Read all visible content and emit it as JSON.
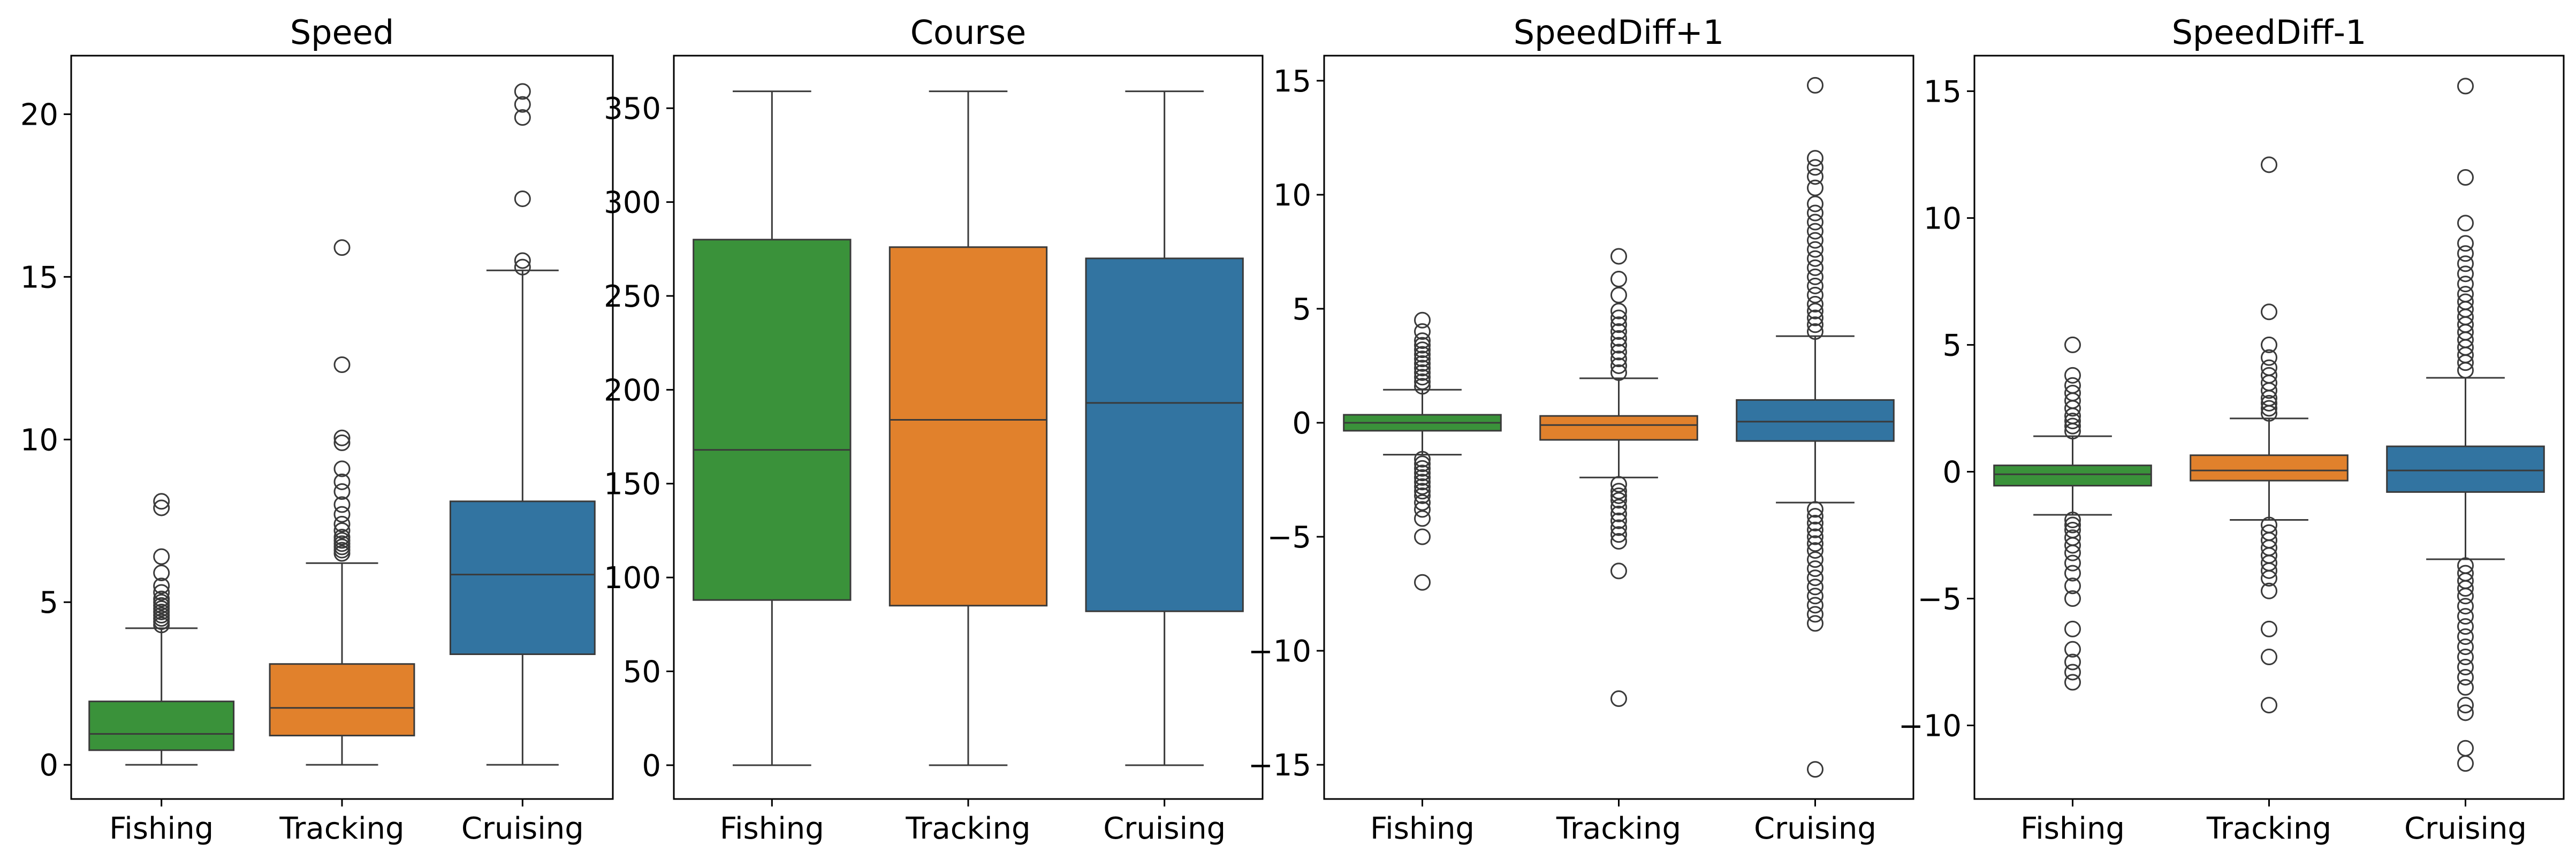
{
  "colors": {
    "Fishing": "#3a923a",
    "Tracking": "#e1812c",
    "Cruising": "#3274a1"
  },
  "chart_data": [
    {
      "type": "box",
      "title": "Speed",
      "categories": [
        "Fishing",
        "Tracking",
        "Cruising"
      ],
      "ylim": [
        -1.05,
        21.8
      ],
      "yticks": [
        0,
        5,
        10,
        15,
        20
      ],
      "ytick_labels": [
        "0",
        "5",
        "10",
        "15",
        "20"
      ],
      "boxes": [
        {
          "category": "Fishing",
          "whislo": 0,
          "q1": 0.45,
          "med": 0.95,
          "q3": 1.95,
          "whishi": 4.2,
          "fliers": [
            4.3,
            4.4,
            4.5,
            4.6,
            4.7,
            4.8,
            4.9,
            5.0,
            5.1,
            5.3,
            5.5,
            5.9,
            6.4,
            7.9,
            8.1
          ]
        },
        {
          "category": "Tracking",
          "whislo": 0,
          "q1": 0.9,
          "med": 1.75,
          "q3": 3.1,
          "whishi": 6.2,
          "fliers": [
            6.5,
            6.6,
            6.7,
            6.8,
            6.9,
            7.0,
            7.2,
            7.4,
            7.7,
            8.0,
            8.4,
            8.7,
            9.1,
            9.9,
            10.05,
            12.3,
            15.9
          ]
        },
        {
          "category": "Cruising",
          "whislo": 0,
          "q1": 3.4,
          "med": 5.85,
          "q3": 8.1,
          "whishi": 15.2,
          "fliers": [
            15.3,
            15.5,
            17.4,
            19.9,
            20.3,
            20.7
          ]
        }
      ]
    },
    {
      "type": "box",
      "title": "Course",
      "categories": [
        "Fishing",
        "Tracking",
        "Cruising"
      ],
      "ylim": [
        -18,
        378
      ],
      "yticks": [
        0,
        50,
        100,
        150,
        200,
        250,
        300,
        350
      ],
      "ytick_labels": [
        "0",
        "50",
        "100",
        "150",
        "200",
        "250",
        "300",
        "350"
      ],
      "boxes": [
        {
          "category": "Fishing",
          "whislo": 0,
          "q1": 88,
          "med": 168,
          "q3": 280,
          "whishi": 359,
          "fliers": []
        },
        {
          "category": "Tracking",
          "whislo": 0,
          "q1": 85,
          "med": 184,
          "q3": 276,
          "whishi": 359,
          "fliers": []
        },
        {
          "category": "Cruising",
          "whislo": 0,
          "q1": 82,
          "med": 193,
          "q3": 270,
          "whishi": 359,
          "fliers": []
        }
      ]
    },
    {
      "type": "box",
      "title": "SpeedDiff+1",
      "categories": [
        "Fishing",
        "Tracking",
        "Cruising"
      ],
      "ylim": [
        -16.5,
        16.1
      ],
      "yticks": [
        -15,
        -10,
        -5,
        0,
        5,
        10,
        15
      ],
      "ytick_labels": [
        "−15",
        "−10",
        "−5",
        "0",
        "5",
        "10",
        "15"
      ],
      "boxes": [
        {
          "category": "Fishing",
          "whislo": -1.4,
          "q1": -0.35,
          "med": 0.0,
          "q3": 0.35,
          "whishi": 1.45,
          "fliers": [
            1.6,
            1.8,
            2.0,
            2.2,
            2.4,
            2.6,
            2.8,
            3.0,
            3.2,
            3.4,
            3.6,
            4.0,
            4.5,
            -1.6,
            -1.8,
            -2.0,
            -2.2,
            -2.4,
            -2.6,
            -2.8,
            -3.0,
            -3.2,
            -3.5,
            -3.8,
            -4.2,
            -5.0,
            -7.0
          ]
        },
        {
          "category": "Tracking",
          "whislo": -2.4,
          "q1": -0.75,
          "med": -0.1,
          "q3": 0.3,
          "whishi": 1.95,
          "fliers": [
            2.2,
            2.5,
            2.8,
            3.1,
            3.4,
            3.7,
            4.0,
            4.3,
            4.6,
            4.9,
            5.6,
            6.3,
            7.3,
            -2.7,
            -3.0,
            -3.2,
            -3.4,
            -3.7,
            -4.0,
            -4.3,
            -4.6,
            -4.9,
            -5.2,
            -6.5,
            -12.1
          ]
        },
        {
          "category": "Cruising",
          "whislo": -3.5,
          "q1": -0.8,
          "med": 0.05,
          "q3": 1.0,
          "whishi": 3.8,
          "fliers": [
            4.0,
            4.3,
            4.6,
            4.9,
            5.2,
            5.6,
            6.0,
            6.4,
            6.8,
            7.2,
            7.6,
            8.0,
            8.4,
            8.8,
            9.2,
            9.6,
            10.3,
            10.8,
            11.2,
            11.6,
            14.8,
            -3.8,
            -4.1,
            -4.4,
            -4.7,
            -5.0,
            -5.3,
            -5.6,
            -6.0,
            -6.4,
            -6.8,
            -7.2,
            -7.6,
            -8.0,
            -8.4,
            -8.8,
            -15.2
          ]
        }
      ]
    },
    {
      "type": "box",
      "title": "SpeedDiff-1",
      "categories": [
        "Fishing",
        "Tracking",
        "Cruising"
      ],
      "ylim": [
        -12.9,
        16.4
      ],
      "yticks": [
        -10,
        -5,
        0,
        5,
        10,
        15
      ],
      "ytick_labels": [
        "−10",
        "−5",
        "0",
        "5",
        "10",
        "15"
      ],
      "boxes": [
        {
          "category": "Fishing",
          "whislo": -1.7,
          "q1": -0.55,
          "med": -0.1,
          "q3": 0.25,
          "whishi": 1.4,
          "fliers": [
            1.6,
            1.8,
            2.0,
            2.2,
            2.5,
            2.8,
            3.1,
            3.4,
            3.8,
            5.0,
            -1.9,
            -2.1,
            -2.3,
            -2.6,
            -2.9,
            -3.2,
            -3.6,
            -4.0,
            -4.5,
            -5.0,
            -6.2,
            -7.0,
            -7.5,
            -7.9,
            -8.3
          ]
        },
        {
          "category": "Tracking",
          "whislo": -1.9,
          "q1": -0.35,
          "med": 0.05,
          "q3": 0.65,
          "whishi": 2.1,
          "fliers": [
            2.3,
            2.5,
            2.7,
            2.9,
            3.2,
            3.5,
            3.8,
            4.1,
            4.5,
            5.0,
            6.3,
            12.1,
            -2.1,
            -2.4,
            -2.7,
            -3.0,
            -3.3,
            -3.6,
            -3.9,
            -4.2,
            -4.7,
            -6.2,
            -7.3,
            -9.2
          ]
        },
        {
          "category": "Cruising",
          "whislo": -3.45,
          "q1": -0.8,
          "med": 0.05,
          "q3": 1.0,
          "whishi": 3.7,
          "fliers": [
            4.0,
            4.3,
            4.6,
            4.9,
            5.2,
            5.5,
            5.8,
            6.1,
            6.4,
            6.7,
            7.0,
            7.4,
            7.8,
            8.2,
            8.6,
            9.0,
            9.8,
            11.6,
            15.2,
            -3.7,
            -4.0,
            -4.3,
            -4.6,
            -4.9,
            -5.3,
            -5.7,
            -6.1,
            -6.5,
            -6.9,
            -7.3,
            -7.7,
            -8.1,
            -8.5,
            -9.2,
            -9.5,
            -10.9,
            -11.5
          ]
        }
      ]
    }
  ]
}
